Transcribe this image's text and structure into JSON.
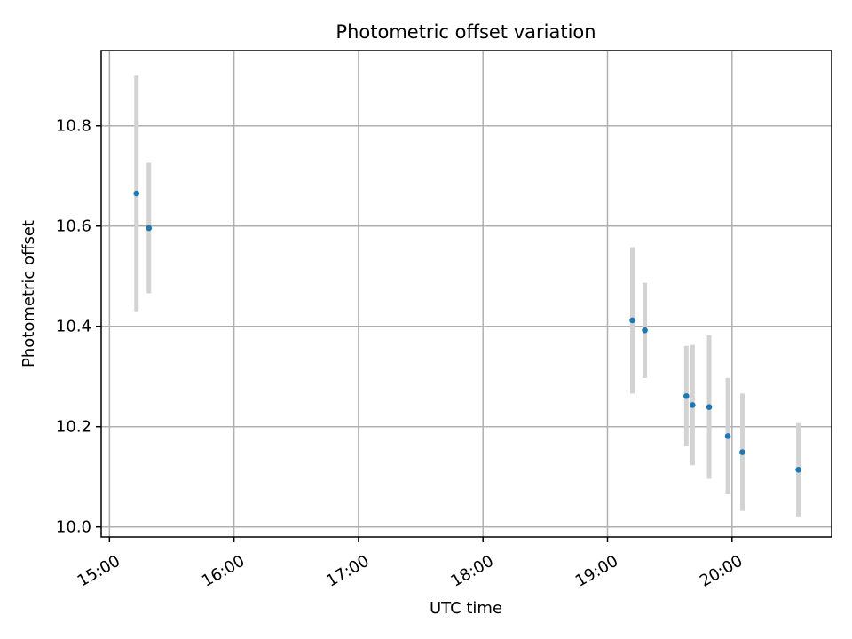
{
  "chart_data": {
    "type": "scatter",
    "title": "Photometric offset variation",
    "xlabel": "UTC time",
    "ylabel": "Photometric offset",
    "x_ticks": [
      "15:00",
      "16:00",
      "17:00",
      "18:00",
      "19:00",
      "20:00"
    ],
    "y_ticks": [
      "10.0",
      "10.2",
      "10.4",
      "10.6",
      "10.8"
    ],
    "xlim": [
      "14:56",
      "20:48"
    ],
    "ylim": [
      9.98,
      10.95
    ],
    "grid": true,
    "legend": "none",
    "marker_color": "#1f77b4",
    "errorbar_color": "#d3d3d3",
    "points": [
      {
        "time": "15:13",
        "y": 10.665,
        "yerr": 0.235
      },
      {
        "time": "15:19",
        "y": 10.596,
        "yerr": 0.13
      },
      {
        "time": "19:12",
        "y": 10.412,
        "yerr": 0.146
      },
      {
        "time": "19:18",
        "y": 10.392,
        "yerr": 0.095
      },
      {
        "time": "19:38",
        "y": 10.261,
        "yerr": 0.1
      },
      {
        "time": "19:41",
        "y": 10.243,
        "yerr": 0.12
      },
      {
        "time": "19:49",
        "y": 10.239,
        "yerr": 0.143
      },
      {
        "time": "19:58",
        "y": 10.181,
        "yerr": 0.116
      },
      {
        "time": "20:05",
        "y": 10.149,
        "yerr": 0.117
      },
      {
        "time": "20:32",
        "y": 10.114,
        "yerr": 0.093
      }
    ]
  }
}
